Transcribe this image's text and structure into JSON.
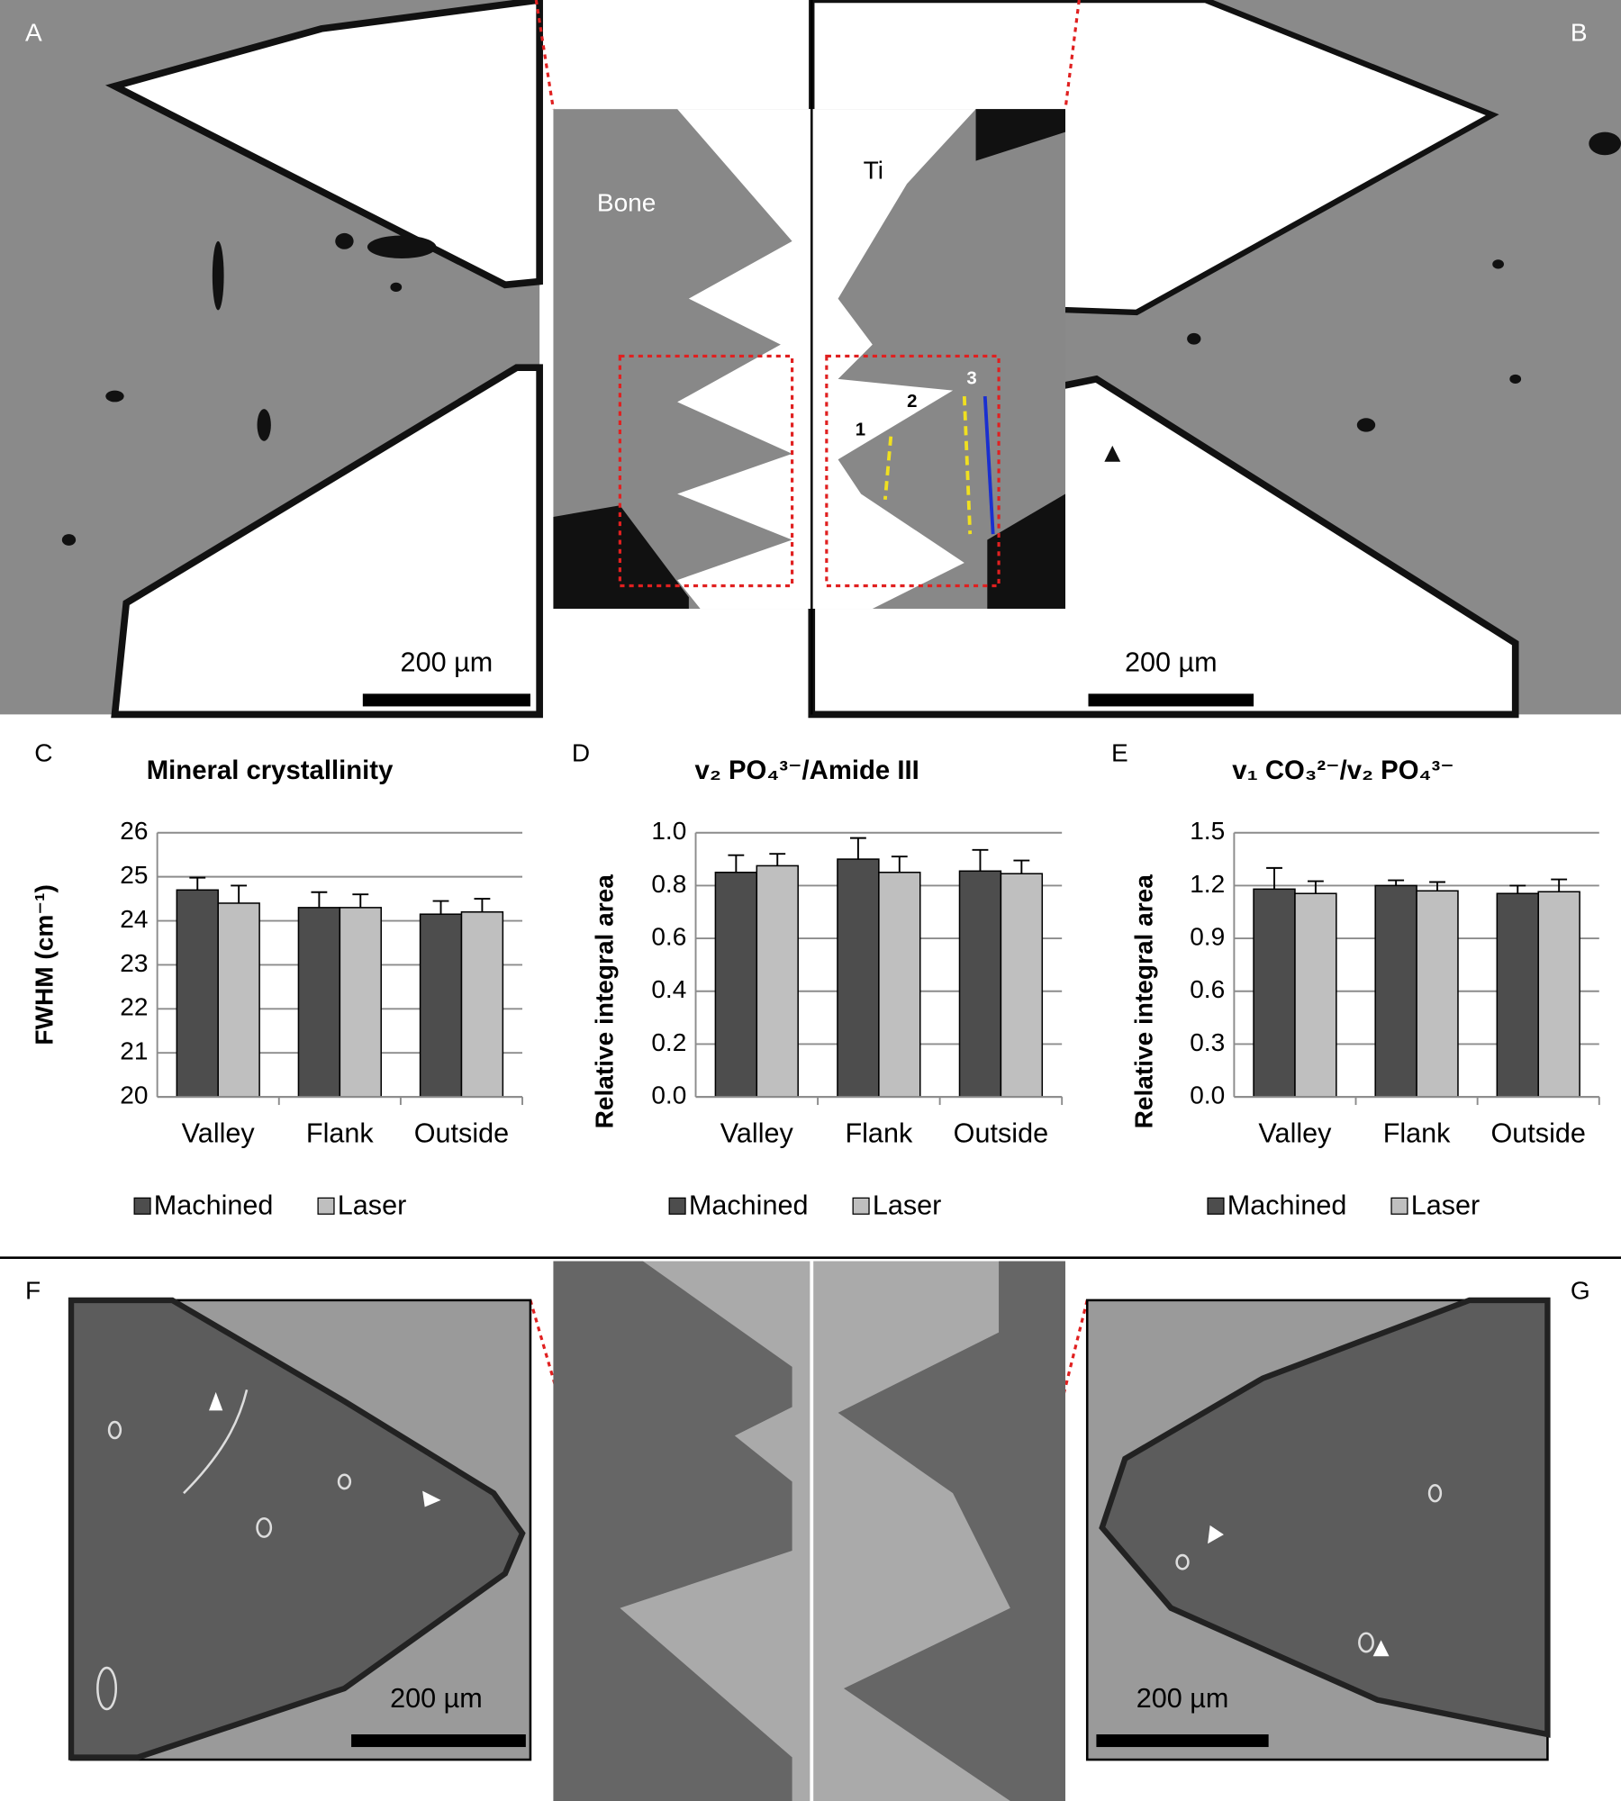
{
  "micrographs": {
    "top": {
      "left_label": "A",
      "right_label": "B",
      "left_inset_label": "Bone",
      "right_inset_label": "Ti",
      "line_labels": [
        "1",
        "2",
        "3"
      ],
      "left_scale": "200 µm",
      "right_scale": "200 µm"
    },
    "bottom": {
      "left_label": "F",
      "right_label": "G",
      "left_scale": "200 µm",
      "right_scale": "200 µm"
    }
  },
  "chart_data": [
    {
      "type": "bar",
      "panel": "C",
      "title": "Mineral crystallinity",
      "y_label": "FWHM (cm⁻¹)",
      "categories": [
        "Valley",
        "Flank",
        "Outside"
      ],
      "series": [
        {
          "name": "Machined",
          "color": "#4d4d4d",
          "values": [
            24.7,
            24.3,
            24.15
          ],
          "errors": [
            0.28,
            0.35,
            0.3
          ]
        },
        {
          "name": "Laser",
          "color": "#bfbfbf",
          "values": [
            24.4,
            24.3,
            24.2
          ],
          "errors": [
            0.4,
            0.3,
            0.3
          ]
        }
      ],
      "ylim": [
        20,
        26
      ],
      "yticks": [
        20,
        21,
        22,
        23,
        24,
        25,
        26
      ],
      "grid": true
    },
    {
      "type": "bar",
      "panel": "D",
      "title": "v₂ PO₄³⁻/Amide III",
      "y_label": "Relative integral area",
      "categories": [
        "Valley",
        "Flank",
        "Outside"
      ],
      "series": [
        {
          "name": "Machined",
          "color": "#4d4d4d",
          "values": [
            0.85,
            0.9,
            0.855
          ],
          "errors": [
            0.065,
            0.08,
            0.08
          ]
        },
        {
          "name": "Laser",
          "color": "#bfbfbf",
          "values": [
            0.875,
            0.85,
            0.845
          ],
          "errors": [
            0.045,
            0.06,
            0.05
          ]
        }
      ],
      "ylim": [
        0,
        1
      ],
      "yticks": [
        {
          "value": 0,
          "label": "0.0"
        },
        0.2,
        0.4,
        0.6,
        0.8,
        {
          "value": 1,
          "label": "1.0"
        }
      ],
      "grid": true
    },
    {
      "type": "bar",
      "panel": "E",
      "title": "v₁ CO₃²⁻/v₂ PO₄³⁻",
      "y_label": "Relative integral area",
      "categories": [
        "Valley",
        "Flank",
        "Outside"
      ],
      "series": [
        {
          "name": "Machined",
          "color": "#4d4d4d",
          "values": [
            1.18,
            1.2,
            1.155
          ],
          "errors": [
            0.12,
            0.03,
            0.045
          ]
        },
        {
          "name": "Laser",
          "color": "#bfbfbf",
          "values": [
            1.155,
            1.17,
            1.165
          ],
          "errors": [
            0.07,
            0.05,
            0.07
          ]
        }
      ],
      "ylim": [
        0,
        1.5
      ],
      "yticks": [
        {
          "value": 0,
          "label": "0.0"
        },
        0.3,
        0.6,
        0.9,
        1.2,
        1.5
      ],
      "grid": true
    }
  ]
}
